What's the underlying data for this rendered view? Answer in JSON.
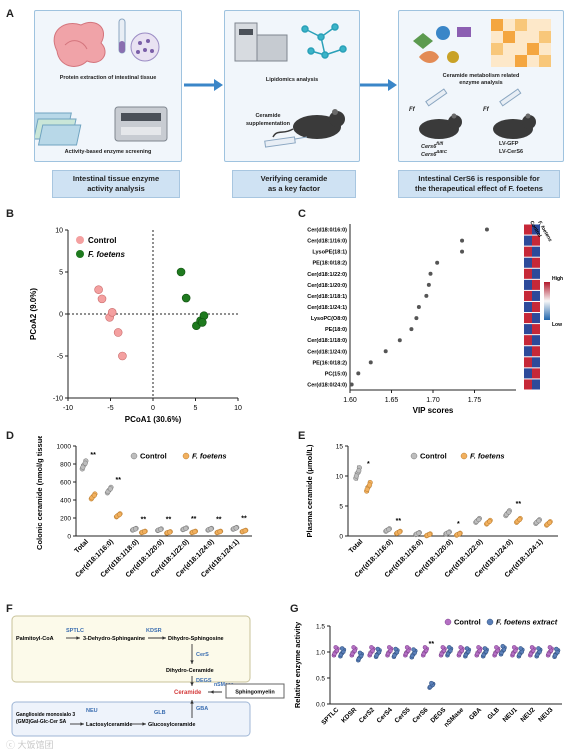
{
  "panels": {
    "A": "A",
    "B": "B",
    "C": "C",
    "D": "D",
    "E": "E",
    "F": "F",
    "G": "G"
  },
  "panelA": {
    "step1_captions": [
      "Protein extraction of intestinal tissue",
      "Activity-based enzyme screening"
    ],
    "step2_captions": [
      "Lipidomics analysis",
      "Ceramide",
      "supplementation"
    ],
    "step3_captions": [
      "Ceramide metabolism related",
      "enzyme analysis"
    ],
    "mice_labels": [
      "Ff",
      "Ff",
      "Cers6",
      "fl/fl",
      "Cers6",
      "ΔIEC",
      "LV-GFP",
      "LV-CerS6"
    ],
    "summary_boxes": [
      {
        "line1": "Intestinal tissue enzyme",
        "line2": "activity analysis"
      },
      {
        "line1": "Verifying ceramide",
        "line2": "as a key factor"
      },
      {
        "line1": "Intestinal CerS6 is responsible for",
        "line2": "the therapeutical effect of F. foetens"
      }
    ]
  },
  "chart_data": [
    {
      "panel": "B",
      "type": "scatter",
      "xlabel": "PCoA1 (30.6%)",
      "ylabel": "PCoA2 (9.0%)",
      "xlim": [
        -10,
        10
      ],
      "ylim": [
        -10,
        10
      ],
      "xticks": [
        "-10",
        "-5",
        "0",
        "5",
        "10"
      ],
      "yticks": [
        "10",
        "5",
        "0",
        "-5",
        "-10"
      ],
      "legend": [
        "Control",
        "F. foetens"
      ],
      "series": [
        {
          "name": "Control",
          "color": "#f4a0a0",
          "points": [
            [
              -6.4,
              2.9
            ],
            [
              -6.0,
              1.8
            ],
            [
              -5.1,
              -0.4
            ],
            [
              -4.8,
              0.2
            ],
            [
              -4.1,
              -2.2
            ],
            [
              -3.6,
              -5.0
            ]
          ]
        },
        {
          "name": "F. foetens",
          "color": "#1f7a1f",
          "points": [
            [
              3.3,
              5.0
            ],
            [
              3.9,
              1.9
            ],
            [
              5.1,
              -1.4
            ],
            [
              5.6,
              -0.8
            ],
            [
              6.0,
              -0.2
            ],
            [
              5.8,
              -1.0
            ]
          ]
        }
      ]
    },
    {
      "panel": "C",
      "type": "scatter",
      "xlabel": "VIP scores",
      "xlim": [
        1.6,
        1.8
      ],
      "xticks": [
        "1.60",
        "1.65",
        "1.70",
        "1.75"
      ],
      "legend_header": [
        "Control",
        "F. foetens"
      ],
      "colorbar_labels": [
        "High",
        "Low"
      ],
      "categories": [
        "Cer(d18:0/16:0)",
        "Cer(d18:1/16:0)",
        "LysoPE(18:1)",
        "PE(18:0/18:2)",
        "Cer(d18:1/22:0)",
        "Cer(d18:1/20:0)",
        "Cer(d18:1/18:1)",
        "Cer(d18:1/24:1)",
        "LysoPC(O8:0)",
        "PE(18:0)",
        "Cer(d18:1/18:0)",
        "Cer(d18:1/24:0)",
        "PE(16:0/18:2)",
        "PC(15:0)",
        "Cer(d18:0/24:0)"
      ],
      "values": [
        1.765,
        1.735,
        1.735,
        1.705,
        1.697,
        1.695,
        1.692,
        1.683,
        1.68,
        1.674,
        1.66,
        1.643,
        1.625,
        1.61,
        1.602
      ]
    },
    {
      "panel": "D",
      "type": "bar",
      "ylabel": "Colonic ceramide (nmol/g tissue)",
      "ylim": [
        0,
        1000
      ],
      "yticks": [
        "1000",
        "800",
        "600",
        "400",
        "200",
        "0"
      ],
      "legend": [
        "Control",
        "F. foetens"
      ],
      "categories": [
        "Total",
        "Cer(d18:1/16:0)",
        "Cer(d18:1/18:0)",
        "Cer(d18:1/20:0)",
        "Cer(d18:1/22:0)",
        "Cer(d18:1/24:0)",
        "Cer(d18:1/24:1)"
      ],
      "series": [
        {
          "name": "Control",
          "values": [
            790,
            510,
            75,
            70,
            80,
            75,
            85
          ]
        },
        {
          "name": "F. foetens",
          "values": [
            440,
            230,
            45,
            40,
            45,
            45,
            55
          ]
        }
      ],
      "significance": [
        "**",
        "**",
        "**",
        "**",
        "**",
        "**",
        "**"
      ]
    },
    {
      "panel": "E",
      "type": "bar",
      "ylabel": "Plasma ceramide (μmol/L)",
      "ylim": [
        0,
        15
      ],
      "yticks": [
        "15",
        "10",
        "5",
        "0"
      ],
      "legend": [
        "Control",
        "F. foetens"
      ],
      "categories": [
        "Total",
        "Cer(d18:1/16:0)",
        "Cer(d18:1/18:0)",
        "Cer(d18:1/20:0)",
        "Cer(d18:1/22:0)",
        "Cer(d18:1/24:0)",
        "Cer(d18:1/24:1)"
      ],
      "series": [
        {
          "name": "Control",
          "values": [
            10.5,
            1.0,
            0.4,
            0.5,
            2.6,
            3.8,
            2.4
          ]
        },
        {
          "name": "F. foetens",
          "values": [
            8.2,
            0.6,
            0.2,
            0.3,
            2.3,
            2.6,
            2.1
          ]
        }
      ],
      "significance": [
        "*",
        "**",
        "",
        "*",
        "",
        "**",
        ""
      ]
    },
    {
      "panel": "G",
      "type": "bar",
      "ylabel": "Relative enzyme activity",
      "ylim": [
        0,
        1.5
      ],
      "yticks": [
        "1.5",
        "1.0",
        "0.5",
        "0.0"
      ],
      "legend": [
        "Control",
        "F. foetens extract"
      ],
      "categories": [
        "SPTLC",
        "KDSR",
        "CerS2",
        "CerS4",
        "CerS5",
        "CerS6",
        "DEGS",
        "nSMase",
        "GBA",
        "GLB",
        "NEU1",
        "NEU2",
        "NEU3"
      ],
      "series": [
        {
          "name": "Control",
          "values": [
            1.0,
            1.0,
            1.0,
            1.0,
            1.0,
            1.0,
            1.0,
            1.0,
            1.0,
            1.0,
            1.0,
            1.0,
            1.0
          ]
        },
        {
          "name": "F. foetens extract",
          "values": [
            0.98,
            0.9,
            0.97,
            0.97,
            0.96,
            0.35,
            1.0,
            0.98,
            0.98,
            1.02,
            0.98,
            0.98,
            0.97
          ]
        }
      ],
      "significance": [
        "",
        "",
        "",
        "",
        "",
        "**",
        "",
        "",
        "",
        "",
        "",
        "",
        ""
      ]
    }
  ],
  "panelF": {
    "nodes": [
      "Palmitoyl-CoA",
      "3-Dehydro-Sphinganine",
      "Dihydro-Sphingosine",
      "Dihydro-Ceramide",
      "Ceramide",
      "Sphingomyelin",
      "Ganglioside monosialo 3 (GM3)Gal-Glc-Cer SA",
      "Lactosylceramide",
      "Glucosylceramide"
    ],
    "enzymes": [
      "SPTLC",
      "KDSR",
      "CerS",
      "DEGS",
      "nSMase",
      "NEU",
      "GLB",
      "GBA"
    ]
  },
  "watermark": "ⓒ 大饭馆团",
  "colors": {
    "control_pink": "#f4a0a0",
    "control_grey": "#bdbdbd",
    "ff_orange": "#f2b05e",
    "ff_green": "#1f7a1f",
    "purple": "#b46fc3",
    "blue": "#5a7fb8",
    "box_blue": "#cfe2f3"
  }
}
